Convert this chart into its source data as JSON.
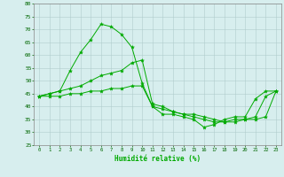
{
  "title": "",
  "xlabel": "Humidité relative (%)",
  "ylabel": "",
  "bg_color": "#d7eeee",
  "grid_color": "#b0cccc",
  "line_color": "#00aa00",
  "xlim": [
    -0.5,
    23.5
  ],
  "ylim": [
    25,
    80
  ],
  "yticks": [
    25,
    30,
    35,
    40,
    45,
    50,
    55,
    60,
    65,
    70,
    75,
    80
  ],
  "xticks": [
    0,
    1,
    2,
    3,
    4,
    5,
    6,
    7,
    8,
    9,
    10,
    11,
    12,
    13,
    14,
    15,
    16,
    17,
    18,
    19,
    20,
    21,
    22,
    23
  ],
  "series": [
    [
      44,
      45,
      46,
      54,
      61,
      66,
      72,
      71,
      68,
      63,
      49,
      40,
      37,
      37,
      36,
      35,
      32,
      33,
      35,
      36,
      36,
      43,
      46,
      46
    ],
    [
      44,
      45,
      46,
      47,
      48,
      50,
      52,
      53,
      54,
      57,
      58,
      41,
      40,
      38,
      37,
      36,
      35,
      34,
      34,
      35,
      35,
      36,
      44,
      46
    ],
    [
      44,
      44,
      44,
      45,
      45,
      46,
      46,
      47,
      47,
      48,
      48,
      40,
      39,
      38,
      37,
      37,
      36,
      35,
      34,
      34,
      35,
      35,
      36,
      46
    ]
  ]
}
